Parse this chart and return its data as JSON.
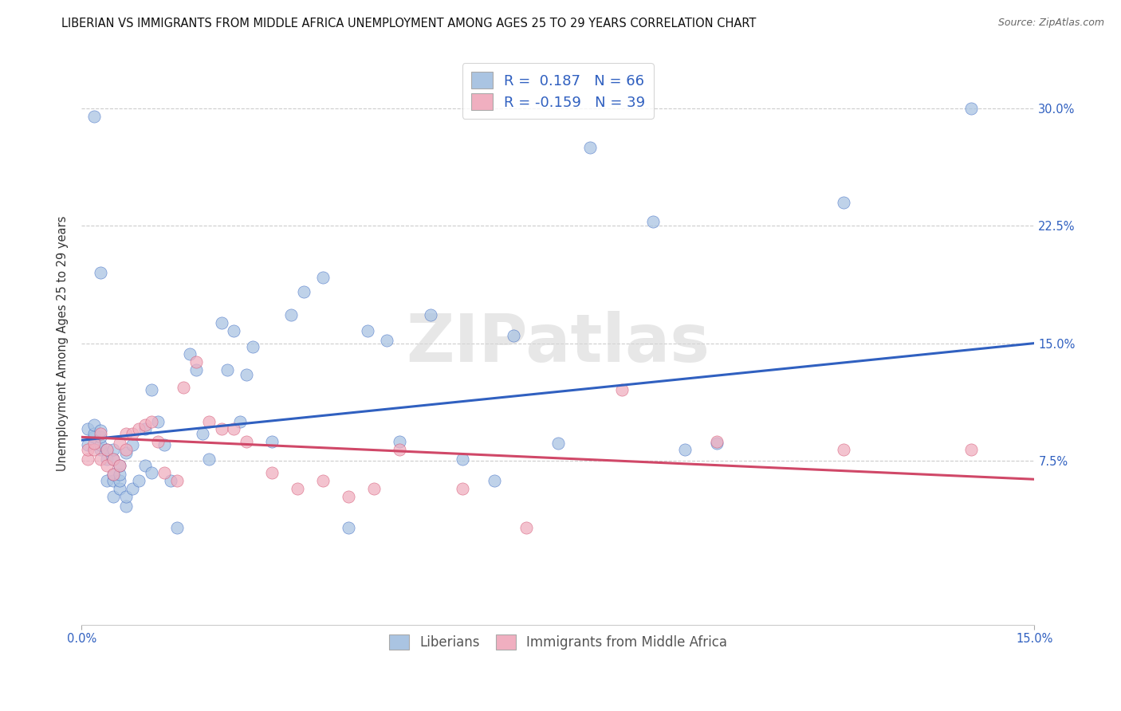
{
  "title": "LIBERIAN VS IMMIGRANTS FROM MIDDLE AFRICA UNEMPLOYMENT AMONG AGES 25 TO 29 YEARS CORRELATION CHART",
  "source": "Source: ZipAtlas.com",
  "ylabel": "Unemployment Among Ages 25 to 29 years",
  "xlim": [
    0.0,
    0.15
  ],
  "ylim": [
    -0.03,
    0.33
  ],
  "yticks": [
    0.075,
    0.15,
    0.225,
    0.3
  ],
  "ytick_labels": [
    "7.5%",
    "15.0%",
    "22.5%",
    "30.0%"
  ],
  "xtick_left_label": "0.0%",
  "xtick_right_label": "15.0%",
  "watermark_text": "ZIPatlas",
  "legend_labels": [
    "Liberians",
    "Immigrants from Middle Africa"
  ],
  "series1_color": "#aac4e2",
  "series2_color": "#f0afc0",
  "trendline1_color": "#3060c0",
  "trendline2_color": "#d04868",
  "R1": 0.187,
  "N1": 66,
  "R2": -0.159,
  "N2": 39,
  "trendline1_x": [
    0.0,
    0.15
  ],
  "trendline1_y": [
    0.088,
    0.15
  ],
  "trendline2_x": [
    0.0,
    0.15
  ],
  "trendline2_y": [
    0.09,
    0.063
  ],
  "series1_x": [
    0.001,
    0.001,
    0.002,
    0.002,
    0.002,
    0.003,
    0.003,
    0.003,
    0.003,
    0.004,
    0.004,
    0.004,
    0.005,
    0.005,
    0.005,
    0.005,
    0.005,
    0.006,
    0.006,
    0.006,
    0.006,
    0.007,
    0.007,
    0.007,
    0.008,
    0.008,
    0.009,
    0.01,
    0.01,
    0.011,
    0.011,
    0.012,
    0.013,
    0.014,
    0.015,
    0.017,
    0.018,
    0.019,
    0.02,
    0.022,
    0.023,
    0.024,
    0.025,
    0.026,
    0.027,
    0.03,
    0.033,
    0.035,
    0.038,
    0.042,
    0.045,
    0.048,
    0.05,
    0.055,
    0.06,
    0.065,
    0.068,
    0.075,
    0.08,
    0.09,
    0.095,
    0.1,
    0.12,
    0.14,
    0.002,
    0.003
  ],
  "series1_y": [
    0.085,
    0.095,
    0.09,
    0.092,
    0.098,
    0.082,
    0.085,
    0.09,
    0.094,
    0.062,
    0.076,
    0.082,
    0.052,
    0.062,
    0.066,
    0.076,
    0.082,
    0.057,
    0.062,
    0.066,
    0.072,
    0.046,
    0.052,
    0.08,
    0.057,
    0.085,
    0.062,
    0.072,
    0.095,
    0.067,
    0.12,
    0.1,
    0.085,
    0.062,
    0.032,
    0.143,
    0.133,
    0.092,
    0.076,
    0.163,
    0.133,
    0.158,
    0.1,
    0.13,
    0.148,
    0.087,
    0.168,
    0.183,
    0.192,
    0.032,
    0.158,
    0.152,
    0.087,
    0.168,
    0.076,
    0.062,
    0.155,
    0.086,
    0.275,
    0.228,
    0.082,
    0.086,
    0.24,
    0.3,
    0.295,
    0.195
  ],
  "series2_x": [
    0.001,
    0.001,
    0.002,
    0.002,
    0.003,
    0.003,
    0.004,
    0.004,
    0.005,
    0.005,
    0.006,
    0.006,
    0.007,
    0.007,
    0.008,
    0.009,
    0.01,
    0.011,
    0.012,
    0.013,
    0.015,
    0.016,
    0.018,
    0.02,
    0.022,
    0.024,
    0.026,
    0.03,
    0.034,
    0.038,
    0.042,
    0.046,
    0.05,
    0.06,
    0.07,
    0.085,
    0.1,
    0.12,
    0.14
  ],
  "series2_y": [
    0.076,
    0.082,
    0.082,
    0.086,
    0.076,
    0.092,
    0.072,
    0.082,
    0.066,
    0.076,
    0.072,
    0.086,
    0.082,
    0.092,
    0.092,
    0.095,
    0.098,
    0.1,
    0.087,
    0.067,
    0.062,
    0.122,
    0.138,
    0.1,
    0.095,
    0.095,
    0.087,
    0.067,
    0.057,
    0.062,
    0.052,
    0.057,
    0.082,
    0.057,
    0.032,
    0.12,
    0.087,
    0.082,
    0.082
  ],
  "background_color": "#ffffff",
  "grid_color": "#cccccc",
  "title_fontsize": 10.5,
  "axis_label_fontsize": 10.5,
  "tick_fontsize": 10.5
}
